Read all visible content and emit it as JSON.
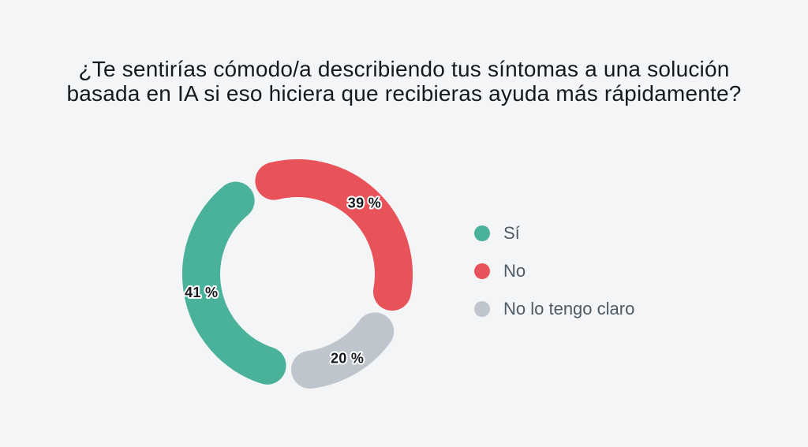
{
  "background_color": "#f4f5f7",
  "title": {
    "full": "¿Te sentirías cómodo/a describiendo tus síntomas a una solución basada en IA si eso hiciera que recibieras ayuda más rápidamente?",
    "lines": [
      "¿Te sentirías cómodo/a describiendo tus síntomas a una solución",
      "basada en IA si eso hiciera que recibieras ayuda más rápidamente?"
    ],
    "color": "#16191e"
  },
  "chart_data": {
    "type": "donut",
    "title": "¿Te sentirías cómodo/a describiendo tus síntomas a una solución basada en IA si eso hiciera que recibieras ayuda más rápidamente?",
    "unit": "%",
    "total": 100,
    "segments": [
      {
        "label": "No",
        "value": 39,
        "display": "39 %",
        "color": "#e8535a"
      },
      {
        "label": "No lo tengo claro",
        "value": 20,
        "display": "20 %",
        "color": "#bfc5cd"
      },
      {
        "label": "Sí",
        "value": 41,
        "display": "41 %",
        "color": "#4ab29a"
      }
    ],
    "legend": [
      {
        "label": "Sí",
        "color": "#4ab29a"
      },
      {
        "label": "No",
        "color": "#e8535a"
      },
      {
        "label": "No lo tengo claro",
        "color": "#bfc5cd"
      }
    ],
    "legend_position": "right",
    "start_angle_deg": -27,
    "donut": {
      "mid_radius": 122,
      "stroke_width": 48,
      "rounded_caps": true,
      "segment_gap_deg": 3.4,
      "label_radius": 124
    },
    "value_label_style": {
      "fill": "#15181d",
      "outline": "#ffffff"
    }
  }
}
